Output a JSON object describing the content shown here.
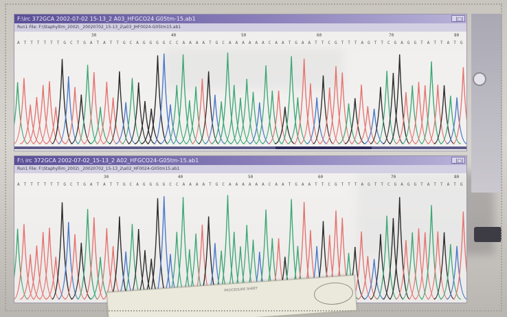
{
  "window_top": {
    "title": "F:\\irc 372GCA 2002-07-02 15-13_2 A03_HFGCO24 G05tm-15.ab1",
    "minimize_label": "_|□|",
    "file_path": "Run1 File: F:\\Staphyllim_2002\\ _20020702_15-13_2\\a03_JHF0024-G05tm15.ab1",
    "bases": "A T T T T T T G C T G A T A T T G C A G G G G C C A A A A T G C A A A A A A C A A T G A A T T C G T T T A G T T C G A G G T A T T A T G A C T",
    "ruler": [
      "30",
      "40",
      "50",
      "60",
      "70",
      "80"
    ]
  },
  "window_bottom": {
    "title": "F:\\ irc 372GCA 2002-07-02_15-13_2 A02_HFGCO24-G05tm-15.ab1",
    "minimize_label": "_|□|",
    "file_path": "Run1 File: F:\\Staphyllim_2002\\ _20020702_15-13_2\\a02_HF0024-G05tm15.ab1",
    "bases": "A T T T T T T G C T G A T A T T G C A G G G G C C A A A A T G C A A A A A A C A A T G A A T T C G T T T A G T T C G A G G T A T T A T G A C T",
    "ruler": [
      "30",
      "40",
      "50",
      "60",
      "70",
      "80"
    ]
  },
  "trace_colors": {
    "A": "#3fa875",
    "C": "#4b78c9",
    "G": "#2a2a2a",
    "T": "#e5726e"
  },
  "document_card": {
    "text": "PROCEDURE SHEET"
  }
}
